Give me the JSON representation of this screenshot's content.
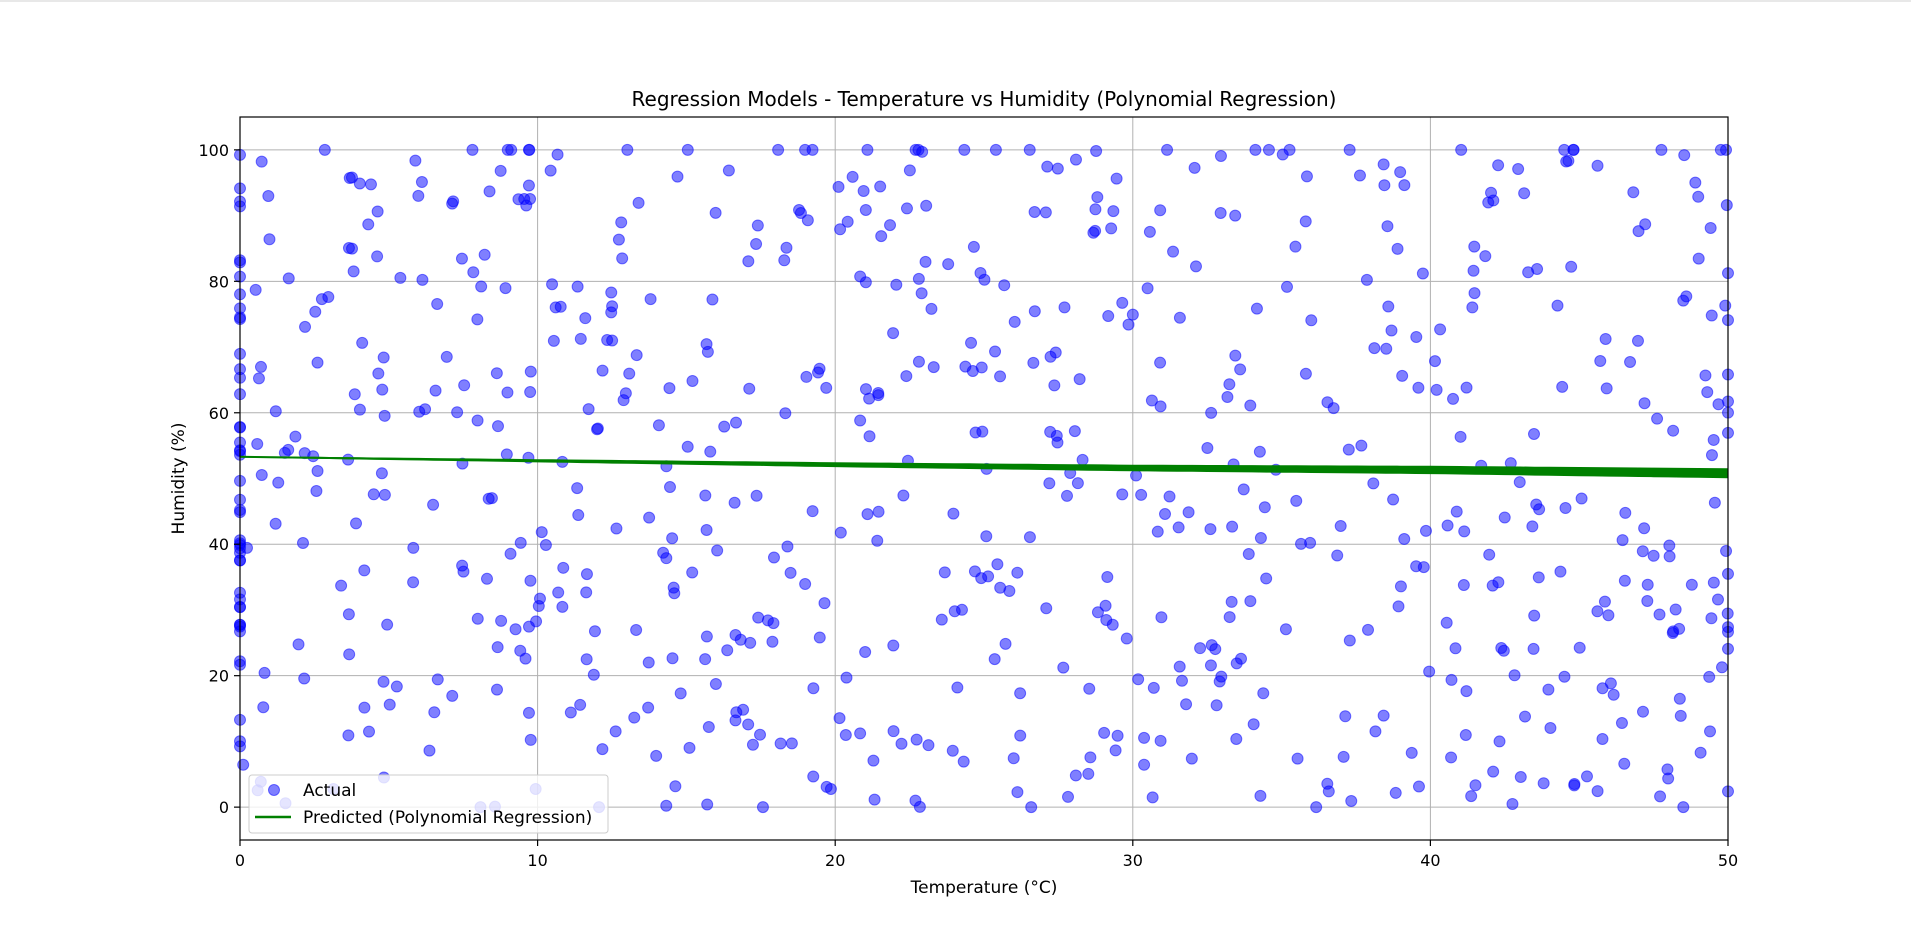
{
  "chart_data": {
    "type": "scatter",
    "title": "Regression Models - Temperature vs Humidity (Polynomial Regression)",
    "xlabel": "Temperature (°C)",
    "ylabel": "Humidity (%)",
    "xlim": [
      0,
      50
    ],
    "ylim": [
      -5,
      105
    ],
    "xticks": [
      0,
      10,
      20,
      30,
      40,
      50
    ],
    "yticks": [
      0,
      20,
      40,
      60,
      80,
      100
    ],
    "grid": true,
    "legend_position": "lower-left",
    "series": [
      {
        "name": "Actual",
        "kind": "scatter",
        "color": "#0000ff",
        "alpha": 0.5,
        "point_count": 750,
        "x_range": [
          0,
          50
        ],
        "y_range": [
          0,
          100
        ]
      },
      {
        "name": "Predicted (Polynomial Regression)",
        "kind": "line",
        "color": "#008000",
        "x": [
          0,
          10,
          20,
          30,
          40,
          50
        ],
        "y": [
          53.3,
          52.7,
          52.1,
          51.6,
          51.3,
          50.8
        ]
      }
    ]
  }
}
